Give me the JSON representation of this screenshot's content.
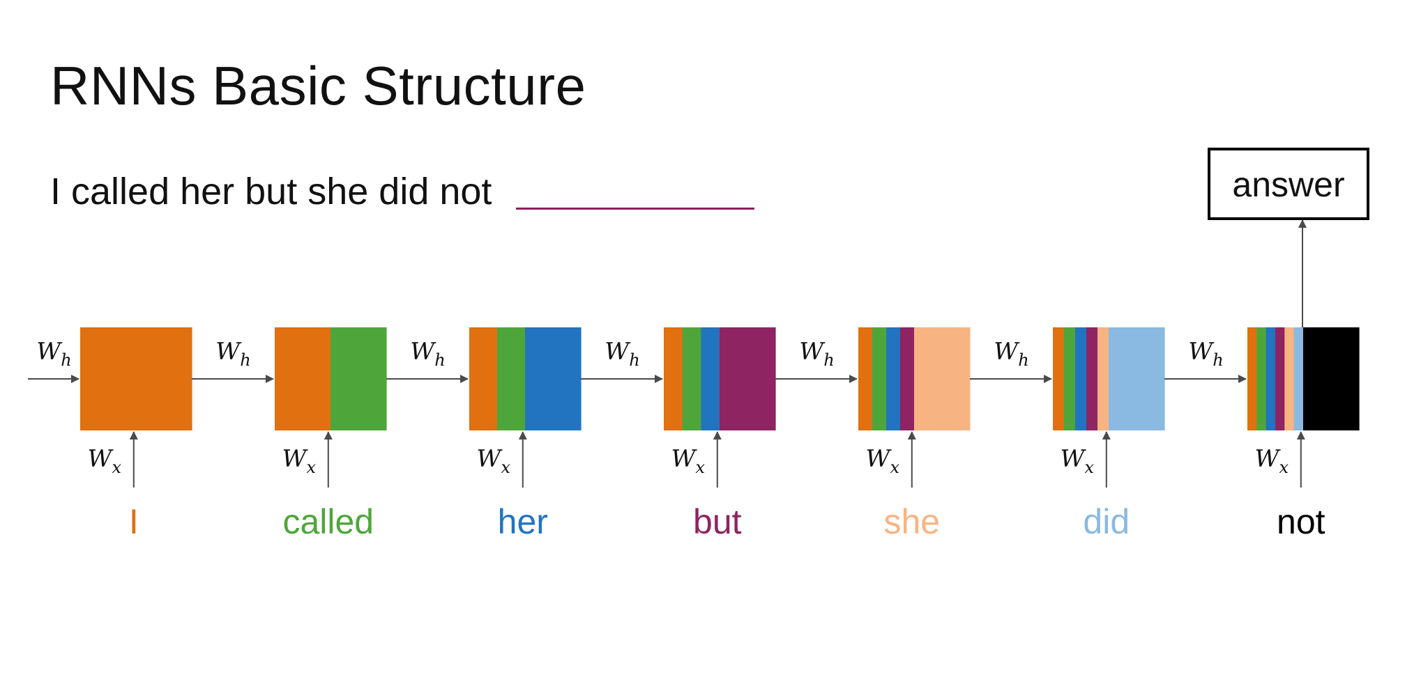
{
  "slide": {
    "title": "RNNs Basic Structure",
    "sentence": "I called her but she did not"
  },
  "diagram": {
    "output_label": "answer",
    "hidden_weight": {
      "base": "W",
      "sub": "h"
    },
    "input_weight": {
      "base": "W",
      "sub": "x"
    },
    "steps": [
      {
        "word": "I",
        "color": "#e07010"
      },
      {
        "word": "called",
        "color": "#4ea63a"
      },
      {
        "word": "her",
        "color": "#2274c0"
      },
      {
        "word": "but",
        "color": "#8e2462"
      },
      {
        "word": "she",
        "color": "#f7b482"
      },
      {
        "word": "did",
        "color": "#8ab9e2"
      },
      {
        "word": "not",
        "color": "#000000"
      }
    ]
  }
}
